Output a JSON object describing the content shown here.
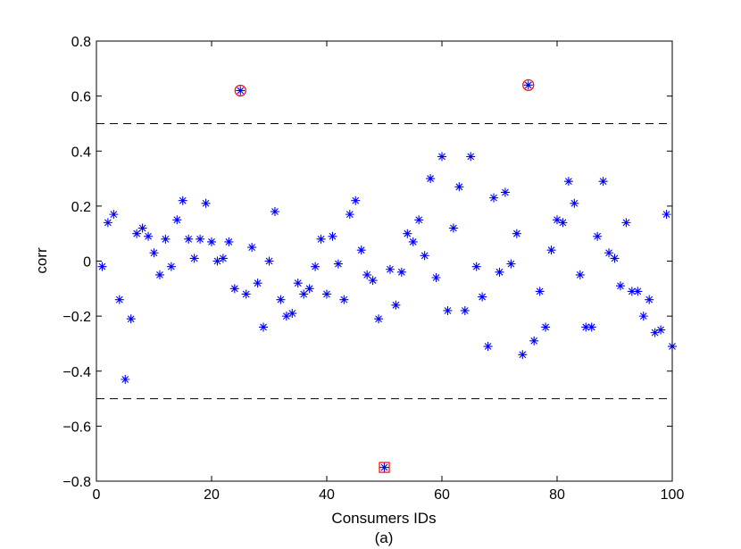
{
  "chart_data": {
    "type": "scatter",
    "title": "",
    "xlabel": "Consumers IDs",
    "ylabel": "corr",
    "caption": "(a)",
    "xlim": [
      0,
      100
    ],
    "ylim": [
      -0.8,
      0.8
    ],
    "xticks": [
      0,
      20,
      40,
      60,
      80,
      100
    ],
    "yticks": [
      -0.8,
      -0.6,
      -0.4,
      -0.2,
      0,
      0.2,
      0.4,
      0.6,
      0.8
    ],
    "xtick_labels": [
      "0",
      "20",
      "40",
      "60",
      "80",
      "100"
    ],
    "ytick_labels": [
      "−0.8",
      "−0.6",
      "−0.4",
      "−0.2",
      "0",
      "0.2",
      "0.4",
      "0.6",
      "0.8"
    ],
    "grid": false,
    "thresholds": [
      0.5,
      -0.5
    ],
    "marker_color": "#0000ff",
    "highlight_color": "#ff0000",
    "threshold_color": "#000000",
    "series": [
      {
        "marker": "asterisk",
        "x": [
          1,
          2,
          3,
          4,
          5,
          6,
          7,
          8,
          9,
          10,
          11,
          12,
          13,
          14,
          15,
          16,
          17,
          18,
          19,
          20,
          21,
          22,
          23,
          24,
          25,
          26,
          27,
          28,
          29,
          30,
          31,
          32,
          33,
          34,
          35,
          36,
          37,
          38,
          39,
          40,
          41,
          42,
          43,
          44,
          45,
          46,
          47,
          48,
          49,
          50,
          51,
          52,
          53,
          54,
          55,
          56,
          57,
          58,
          59,
          60,
          61,
          62,
          63,
          64,
          65,
          66,
          67,
          68,
          69,
          70,
          71,
          72,
          73,
          74,
          75,
          76,
          77,
          78,
          79,
          80,
          81,
          82,
          83,
          84,
          85,
          86,
          87,
          88,
          89,
          90,
          91,
          92,
          93,
          94,
          95,
          96,
          97,
          98,
          99,
          100
        ],
        "y": [
          -0.02,
          0.14,
          0.17,
          -0.14,
          -0.43,
          -0.21,
          0.1,
          0.12,
          0.09,
          0.03,
          -0.05,
          0.08,
          -0.02,
          0.15,
          0.22,
          0.08,
          0.01,
          0.08,
          0.21,
          0.07,
          0.0,
          0.01,
          0.07,
          -0.1,
          0.62,
          -0.12,
          0.05,
          -0.08,
          -0.24,
          0.0,
          0.18,
          -0.14,
          -0.2,
          -0.19,
          -0.08,
          -0.12,
          -0.1,
          -0.02,
          0.08,
          -0.12,
          0.09,
          -0.01,
          -0.14,
          0.17,
          0.22,
          0.04,
          -0.05,
          -0.07,
          -0.21,
          -0.75,
          -0.03,
          -0.16,
          -0.04,
          0.1,
          0.07,
          0.15,
          0.02,
          0.3,
          -0.06,
          0.38,
          -0.18,
          0.12,
          0.27,
          -0.18,
          0.38,
          -0.02,
          -0.13,
          -0.31,
          0.23,
          -0.04,
          0.25,
          -0.01,
          0.1,
          -0.34,
          0.64,
          -0.29,
          -0.11,
          -0.24,
          0.04,
          0.15,
          0.14,
          0.29,
          0.21,
          -0.05,
          -0.24,
          -0.24,
          0.09,
          0.29,
          0.03,
          0.01,
          -0.09,
          0.14,
          -0.11,
          -0.11,
          -0.2,
          -0.14,
          -0.26,
          -0.25,
          0.17,
          -0.31
        ]
      }
    ],
    "highlighted_points": [
      {
        "x": 25,
        "y": 0.62,
        "marker": "circle"
      },
      {
        "x": 50,
        "y": -0.75,
        "marker": "square"
      },
      {
        "x": 75,
        "y": 0.64,
        "marker": "circle"
      }
    ]
  }
}
